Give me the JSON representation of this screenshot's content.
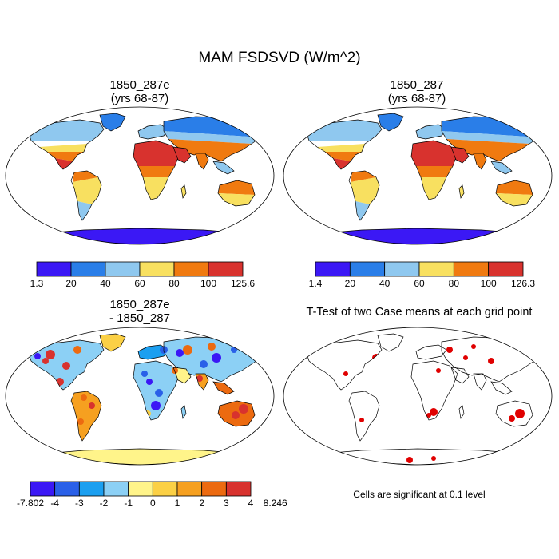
{
  "title": "MAM FSDSVD (W/m^2)",
  "panels": [
    {
      "id": "p1",
      "title_line1": "1850_287e",
      "title_line2": "(yrs 68-87)",
      "palette": "abs"
    },
    {
      "id": "p2",
      "title_line1": "1850_287",
      "title_line2": "(yrs 68-87)",
      "palette": "abs"
    },
    {
      "id": "p3",
      "title_line1": "1850_287e",
      "title_line2": "- 1850_287",
      "palette": "diff"
    },
    {
      "id": "p4",
      "title_line1": "T-Test of two Case means at each grid point",
      "title_line2": "",
      "palette": "sig"
    }
  ],
  "colorbars": {
    "abs1": {
      "labels": [
        "1.3",
        "20",
        "40",
        "60",
        "80",
        "100",
        "125.6"
      ],
      "colors": [
        "#3b18f5",
        "#2a7ee8",
        "#8fc8ef",
        "#f8e060",
        "#f07a10",
        "#d8322e"
      ]
    },
    "abs2": {
      "labels": [
        "1.4",
        "20",
        "40",
        "60",
        "80",
        "100",
        "126.3"
      ],
      "colors": [
        "#3b18f5",
        "#2a7ee8",
        "#8fc8ef",
        "#f8e060",
        "#f07a10",
        "#d8322e"
      ]
    },
    "diff": {
      "labels": [
        "-7.802",
        "-4",
        "-3",
        "-2",
        "-1",
        "0",
        "1",
        "2",
        "3",
        "4",
        "8.246"
      ],
      "colors": [
        "#3b18f5",
        "#2a60e8",
        "#1b9ff0",
        "#8cd0f5",
        "#fff48a",
        "#fbd045",
        "#f6a020",
        "#ec6a10",
        "#d8322e"
      ]
    }
  },
  "note": "Cells are significant at 0.1 level",
  "colors": {
    "land_outline": "#000000",
    "ocean": "#ffffff",
    "significant": "#e00000"
  }
}
